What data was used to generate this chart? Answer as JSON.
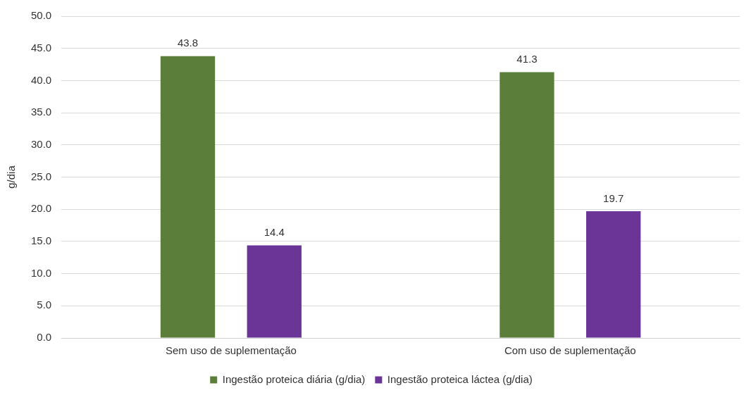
{
  "chart_data": {
    "type": "bar",
    "ylabel": "g/dia",
    "categories": [
      "Sem uso de suplementação",
      "Com uso de suplementação"
    ],
    "series": [
      {
        "name": "Ingestão proteica diária (g/dia)",
        "color": "#5b7f3b",
        "values": [
          43.8,
          41.3
        ]
      },
      {
        "name": "Ingestão proteica láctea (g/dia)",
        "color": "#6a3597",
        "values": [
          14.4,
          19.7
        ]
      }
    ],
    "ylim": [
      0,
      50
    ],
    "yticks": [
      {
        "value": 0,
        "label": "0.0"
      },
      {
        "value": 5,
        "label": "5.0"
      },
      {
        "value": 10,
        "label": "10.0"
      },
      {
        "value": 15,
        "label": "15.0"
      },
      {
        "value": 20,
        "label": "20.0"
      },
      {
        "value": 25,
        "label": "25.0"
      },
      {
        "value": 30,
        "label": "30.0"
      },
      {
        "value": 35,
        "label": "35.0"
      },
      {
        "value": 40,
        "label": "40.0"
      },
      {
        "value": 45,
        "label": "45.0"
      },
      {
        "value": 50,
        "label": "50.0"
      }
    ],
    "grid": "y",
    "legend": "bottom",
    "data_labels": true
  }
}
